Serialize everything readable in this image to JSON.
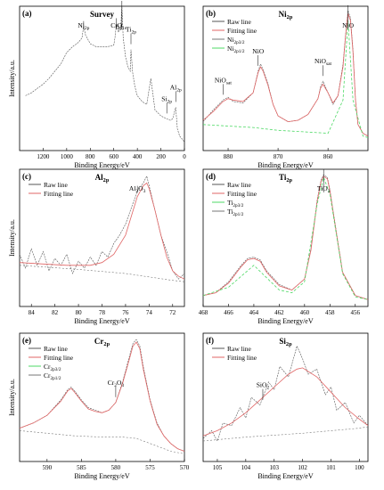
{
  "chart_data": [
    {
      "panel": "(a)",
      "title": "Survey",
      "type": "line",
      "xlabel": "Binding Energy/eV",
      "ylabel": "Intensity/a.u.",
      "xlim": [
        1400,
        0
      ],
      "x_ticks": [
        "1200",
        "1000",
        "800",
        "600",
        "400",
        "200",
        "0"
      ],
      "x_tick_values": [
        1200,
        1000,
        800,
        600,
        400,
        200,
        0
      ],
      "legend": [],
      "series": [
        {
          "role": "raw",
          "x": [
            1350,
            1300,
            1250,
            1200,
            1150,
            1100,
            1050,
            1000,
            950,
            900,
            870,
            856,
            840,
            800,
            750,
            700,
            650,
            600,
            590,
            577,
            560,
            540,
            531,
            520,
            500,
            480,
            460,
            454,
            440,
            420,
            400,
            360,
            320,
            285,
            250,
            200,
            150,
            120,
            100,
            74,
            60,
            40,
            20,
            0
          ],
          "y": [
            0.38,
            0.4,
            0.43,
            0.46,
            0.5,
            0.55,
            0.6,
            0.68,
            0.72,
            0.75,
            0.78,
            0.86,
            0.8,
            0.74,
            0.72,
            0.72,
            0.72,
            0.73,
            0.78,
            0.88,
            0.82,
            0.86,
            1.0,
            0.78,
            0.65,
            0.58,
            0.55,
            0.7,
            0.54,
            0.44,
            0.38,
            0.34,
            0.32,
            0.5,
            0.28,
            0.24,
            0.22,
            0.21,
            0.22,
            0.3,
            0.15,
            0.1,
            0.08,
            0.06
          ]
        }
      ],
      "annotations": [
        {
          "label": "O",
          "sub": "1s",
          "x": 531
        },
        {
          "label": "Ni",
          "sub": "2p",
          "x": 856
        },
        {
          "label": "Cr",
          "sub": "2p",
          "x": 577
        },
        {
          "label": "Ti",
          "sub": "2p",
          "x": 454
        },
        {
          "label": "Si",
          "sub": "2p",
          "x": 150
        },
        {
          "label": "Al",
          "sub": "2p",
          "x": 74
        }
      ]
    },
    {
      "panel": "(b)",
      "title": "Ni",
      "title_sub": "2p",
      "type": "line",
      "xlabel": "Binding Energy/eV",
      "ylabel": "",
      "xlim": [
        885,
        852
      ],
      "x_ticks": [
        "880",
        "870",
        "860"
      ],
      "x_tick_values": [
        880,
        870,
        860
      ],
      "legend": [
        {
          "label": "Raw line",
          "sub": "",
          "color": "#555555"
        },
        {
          "label": "Fitting line",
          "sub": "",
          "color": "#e06666"
        },
        {
          "label": "Ni",
          "sub": "2p3/2",
          "color": "#777777"
        },
        {
          "label": "Ni",
          "sub": "2p1/2",
          "color": "#4cd964"
        }
      ],
      "series": [
        {
          "role": "raw",
          "x": [
            885,
            883,
            881,
            880,
            879,
            877,
            875,
            874,
            873.5,
            873,
            872,
            871,
            870,
            868,
            866,
            864,
            862,
            861.5,
            861,
            860,
            859,
            858,
            857,
            856.5,
            856,
            855.5,
            855,
            854.5,
            854,
            853,
            852
          ],
          "y": [
            0.2,
            0.28,
            0.35,
            0.37,
            0.34,
            0.33,
            0.4,
            0.55,
            0.6,
            0.56,
            0.46,
            0.32,
            0.24,
            0.2,
            0.21,
            0.25,
            0.36,
            0.44,
            0.48,
            0.4,
            0.32,
            0.38,
            0.6,
            0.8,
            0.97,
            0.92,
            0.7,
            0.35,
            0.18,
            0.12,
            0.1
          ]
        },
        {
          "role": "fit",
          "x": [
            885,
            883,
            881,
            880,
            879,
            877,
            875,
            874,
            873.5,
            873,
            872,
            871,
            870,
            868,
            866,
            864,
            862,
            861.5,
            861,
            860,
            859,
            858,
            857,
            856.5,
            856,
            855.5,
            855,
            854.5,
            854,
            853,
            852
          ],
          "y": [
            0.21,
            0.27,
            0.34,
            0.36,
            0.35,
            0.34,
            0.4,
            0.54,
            0.58,
            0.55,
            0.45,
            0.32,
            0.24,
            0.2,
            0.21,
            0.25,
            0.36,
            0.43,
            0.46,
            0.4,
            0.33,
            0.38,
            0.58,
            0.79,
            0.95,
            0.9,
            0.68,
            0.35,
            0.18,
            0.12,
            0.1
          ]
        },
        {
          "role": "component",
          "x": [
            885,
            880,
            875,
            870,
            865,
            860,
            857,
            856,
            855,
            853,
            852
          ],
          "y": [
            0.18,
            0.17,
            0.16,
            0.14,
            0.13,
            0.12,
            0.35,
            0.9,
            0.35,
            0.1,
            0.09
          ]
        }
      ],
      "annotations": [
        {
          "label": "NiO",
          "sub": "sat",
          "x": 881
        },
        {
          "label": "NiO",
          "sub": "",
          "x": 874
        },
        {
          "label": "NiO",
          "sub": "sat",
          "x": 861
        },
        {
          "label": "NiO",
          "sub": "",
          "x": 856
        }
      ]
    },
    {
      "panel": "(c)",
      "title": "Al",
      "title_sub": "2p",
      "type": "line",
      "xlabel": "Binding Energy/eV",
      "ylabel": "Intensity/a.u.",
      "xlim": [
        85,
        71
      ],
      "x_ticks": [
        "84",
        "82",
        "80",
        "78",
        "76",
        "74",
        "72"
      ],
      "x_tick_values": [
        84,
        82,
        80,
        78,
        76,
        74,
        72
      ],
      "legend": [
        {
          "label": "Raw line",
          "sub": "",
          "color": "#555555"
        },
        {
          "label": "Fitting line",
          "sub": "",
          "color": "#e06666"
        }
      ],
      "series": [
        {
          "role": "raw",
          "x": [
            85,
            84.5,
            84,
            83.5,
            83,
            82.5,
            82,
            81.5,
            81,
            80.5,
            80,
            79.5,
            79,
            78.5,
            78,
            77.5,
            77,
            76.5,
            76,
            75.5,
            75,
            74.5,
            74.2,
            74,
            73.5,
            73,
            72.5,
            72,
            71.5,
            71
          ],
          "y": [
            0.38,
            0.28,
            0.42,
            0.3,
            0.4,
            0.26,
            0.35,
            0.3,
            0.38,
            0.24,
            0.33,
            0.28,
            0.36,
            0.3,
            0.4,
            0.36,
            0.46,
            0.52,
            0.6,
            0.72,
            0.84,
            0.9,
            0.95,
            0.88,
            0.7,
            0.52,
            0.4,
            0.26,
            0.2,
            0.24
          ]
        },
        {
          "role": "fit",
          "x": [
            85,
            83,
            81,
            79,
            78,
            77,
            76,
            75.5,
            75,
            74.5,
            74.2,
            74,
            73.5,
            73,
            72.5,
            72,
            71.5,
            71
          ],
          "y": [
            0.32,
            0.31,
            0.3,
            0.3,
            0.32,
            0.38,
            0.52,
            0.66,
            0.8,
            0.88,
            0.9,
            0.86,
            0.7,
            0.52,
            0.36,
            0.26,
            0.22,
            0.2
          ]
        },
        {
          "role": "background",
          "x": [
            85,
            80,
            76,
            72,
            71
          ],
          "y": [
            0.3,
            0.27,
            0.24,
            0.19,
            0.18
          ]
        }
      ],
      "annotations": [
        {
          "label": "Al",
          "sub": "2",
          "label2": "O",
          "sub2": "3",
          "x": 75
        }
      ]
    },
    {
      "panel": "(d)",
      "title": "Ti",
      "title_sub": "2p",
      "type": "line",
      "xlabel": "Binding Energy/eV",
      "ylabel": "",
      "xlim": [
        468,
        455
      ],
      "x_ticks": [
        "468",
        "466",
        "464",
        "462",
        "460",
        "458",
        "456"
      ],
      "x_tick_values": [
        468,
        466,
        464,
        462,
        460,
        458,
        456
      ],
      "legend": [
        {
          "label": "Raw line",
          "sub": "",
          "color": "#555555"
        },
        {
          "label": "Fitting line",
          "sub": "",
          "color": "#e06666"
        },
        {
          "label": "Ti",
          "sub": "2p3/2",
          "color": "#4cd964"
        },
        {
          "label": "Ti",
          "sub": "2p1/2",
          "color": "#777777"
        }
      ],
      "series": [
        {
          "role": "raw",
          "x": [
            468,
            467,
            466,
            465,
            464.5,
            464,
            463.5,
            463,
            462,
            461,
            460,
            459.5,
            459,
            458.7,
            458.5,
            458.2,
            458,
            457.5,
            457,
            456,
            455
          ],
          "y": [
            0.08,
            0.1,
            0.18,
            0.3,
            0.35,
            0.36,
            0.34,
            0.26,
            0.16,
            0.12,
            0.2,
            0.42,
            0.78,
            0.92,
            0.96,
            0.94,
            0.85,
            0.55,
            0.25,
            0.08,
            0.05
          ]
        },
        {
          "role": "fit",
          "x": [
            468,
            467,
            466,
            465,
            464.5,
            464,
            463.5,
            463,
            462,
            461,
            460,
            459.5,
            459,
            458.7,
            458.5,
            458.2,
            458,
            457.5,
            457,
            456,
            455
          ],
          "y": [
            0.08,
            0.1,
            0.17,
            0.29,
            0.34,
            0.35,
            0.33,
            0.25,
            0.15,
            0.12,
            0.2,
            0.41,
            0.77,
            0.91,
            0.95,
            0.93,
            0.84,
            0.54,
            0.25,
            0.08,
            0.05
          ]
        },
        {
          "role": "component",
          "x": [
            468,
            466,
            464,
            462,
            461,
            460,
            459,
            458.5,
            458,
            457,
            456,
            455
          ],
          "y": [
            0.08,
            0.14,
            0.3,
            0.12,
            0.1,
            0.18,
            0.75,
            0.94,
            0.82,
            0.24,
            0.07,
            0.05
          ]
        }
      ],
      "annotations": [
        {
          "label": "TiO",
          "sub": "2",
          "x": 458.5
        }
      ]
    },
    {
      "panel": "(e)",
      "title": "Cr",
      "title_sub": "2p",
      "type": "line",
      "xlabel": "Binding Energy/eV",
      "ylabel": "Intensity/a.u.",
      "xlim": [
        594,
        570
      ],
      "x_ticks": [
        "590",
        "585",
        "580",
        "575",
        "570"
      ],
      "x_tick_values": [
        590,
        585,
        580,
        575,
        570
      ],
      "legend": [
        {
          "label": "Raw line",
          "sub": "",
          "color": "#555555"
        },
        {
          "label": "Fitting line",
          "sub": "",
          "color": "#e06666"
        },
        {
          "label": "Cr",
          "sub": "2p3/2",
          "color": "#4cd964"
        },
        {
          "label": "Cr",
          "sub": "2p1/2",
          "color": "#777777"
        }
      ],
      "series": [
        {
          "role": "raw",
          "x": [
            594,
            592,
            590,
            588,
            587,
            586.5,
            586,
            585,
            584,
            583,
            582,
            581,
            580,
            579,
            578,
            577.5,
            577,
            576.5,
            576,
            575,
            574,
            573,
            572,
            571,
            570
          ],
          "y": [
            0.26,
            0.3,
            0.36,
            0.48,
            0.56,
            0.58,
            0.55,
            0.48,
            0.42,
            0.4,
            0.38,
            0.4,
            0.46,
            0.62,
            0.82,
            0.92,
            0.95,
            0.9,
            0.74,
            0.48,
            0.3,
            0.2,
            0.14,
            0.1,
            0.08
          ]
        },
        {
          "role": "fit",
          "x": [
            594,
            592,
            590,
            588,
            587,
            586.5,
            586,
            585,
            584,
            583,
            582,
            581,
            580,
            579,
            578,
            577.5,
            577,
            576.5,
            576,
            575,
            574,
            573,
            572,
            571,
            570
          ],
          "y": [
            0.26,
            0.3,
            0.36,
            0.47,
            0.55,
            0.57,
            0.54,
            0.47,
            0.41,
            0.39,
            0.38,
            0.4,
            0.46,
            0.61,
            0.8,
            0.9,
            0.93,
            0.88,
            0.72,
            0.47,
            0.29,
            0.2,
            0.14,
            0.1,
            0.08
          ]
        },
        {
          "role": "background",
          "x": [
            594,
            590,
            586,
            582,
            579,
            577,
            575,
            572,
            570
          ],
          "y": [
            0.24,
            0.22,
            0.2,
            0.19,
            0.19,
            0.18,
            0.14,
            0.08,
            0.06
          ]
        }
      ],
      "annotations": [
        {
          "label": "Cr",
          "sub": "2",
          "label2": "O",
          "sub2": "3",
          "x": 580
        }
      ]
    },
    {
      "panel": "(f)",
      "title": "Si",
      "title_sub": "2p",
      "type": "line",
      "xlabel": "Binding Energy/eV",
      "ylabel": "",
      "xlim": [
        105.5,
        99.7
      ],
      "x_ticks": [
        "105",
        "104",
        "103",
        "102",
        "101",
        "100"
      ],
      "x_tick_values": [
        105,
        104,
        103,
        102,
        101,
        100
      ],
      "legend": [
        {
          "label": "Raw line",
          "sub": "",
          "color": "#555555"
        },
        {
          "label": "Fitting line",
          "sub": "",
          "color": "#e06666"
        }
      ],
      "series": [
        {
          "role": "raw",
          "x": [
            105.5,
            105.2,
            105,
            104.8,
            104.5,
            104.2,
            104,
            103.8,
            103.5,
            103.2,
            103,
            102.8,
            102.5,
            102.2,
            102,
            101.8,
            101.5,
            101.2,
            101,
            100.8,
            100.5,
            100.2,
            100,
            99.7
          ],
          "y": [
            0.18,
            0.24,
            0.16,
            0.3,
            0.28,
            0.42,
            0.34,
            0.5,
            0.44,
            0.62,
            0.56,
            0.74,
            0.66,
            0.9,
            0.8,
            0.68,
            0.72,
            0.52,
            0.58,
            0.4,
            0.46,
            0.3,
            0.36,
            0.28
          ]
        },
        {
          "role": "fit",
          "x": [
            105.5,
            105,
            104.5,
            104,
            103.5,
            103,
            102.5,
            102.2,
            102,
            101.5,
            101,
            100.5,
            100,
            99.7
          ],
          "y": [
            0.2,
            0.24,
            0.3,
            0.38,
            0.48,
            0.58,
            0.68,
            0.72,
            0.73,
            0.66,
            0.54,
            0.42,
            0.33,
            0.28
          ]
        },
        {
          "role": "background",
          "x": [
            105.5,
            104,
            102,
            100,
            99.7
          ],
          "y": [
            0.16,
            0.19,
            0.22,
            0.26,
            0.27
          ]
        }
      ],
      "annotations": [
        {
          "label": "SiO",
          "sub": "2",
          "x": 103.4
        }
      ]
    }
  ]
}
